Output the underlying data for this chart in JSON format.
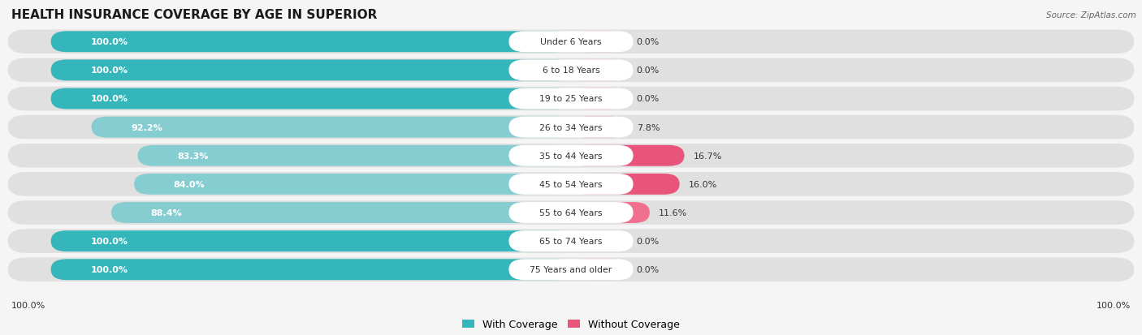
{
  "title": "HEALTH INSURANCE COVERAGE BY AGE IN SUPERIOR",
  "source": "Source: ZipAtlas.com",
  "categories": [
    "Under 6 Years",
    "6 to 18 Years",
    "19 to 25 Years",
    "26 to 34 Years",
    "35 to 44 Years",
    "45 to 54 Years",
    "55 to 64 Years",
    "65 to 74 Years",
    "75 Years and older"
  ],
  "with_coverage": [
    100.0,
    100.0,
    100.0,
    92.2,
    83.3,
    84.0,
    88.4,
    100.0,
    100.0
  ],
  "without_coverage": [
    0.0,
    0.0,
    0.0,
    7.8,
    16.7,
    16.0,
    11.6,
    0.0,
    0.0
  ],
  "color_with_dark": "#35b6ba",
  "color_with_light": "#85cdd0",
  "color_without_dark": "#e8547a",
  "color_without_light": "#f4a8be",
  "row_bg_color": "#e0e0e0",
  "fig_bg_color": "#f5f5f5",
  "title_color": "#1a1a1a",
  "label_inside_color": "#ffffff",
  "label_outside_color": "#333333",
  "cat_label_color": "#333333",
  "source_color": "#666666",
  "legend_with": "With Coverage",
  "legend_without": "Without Coverage",
  "bottom_left_label": "100.0%",
  "bottom_right_label": "100.0%"
}
